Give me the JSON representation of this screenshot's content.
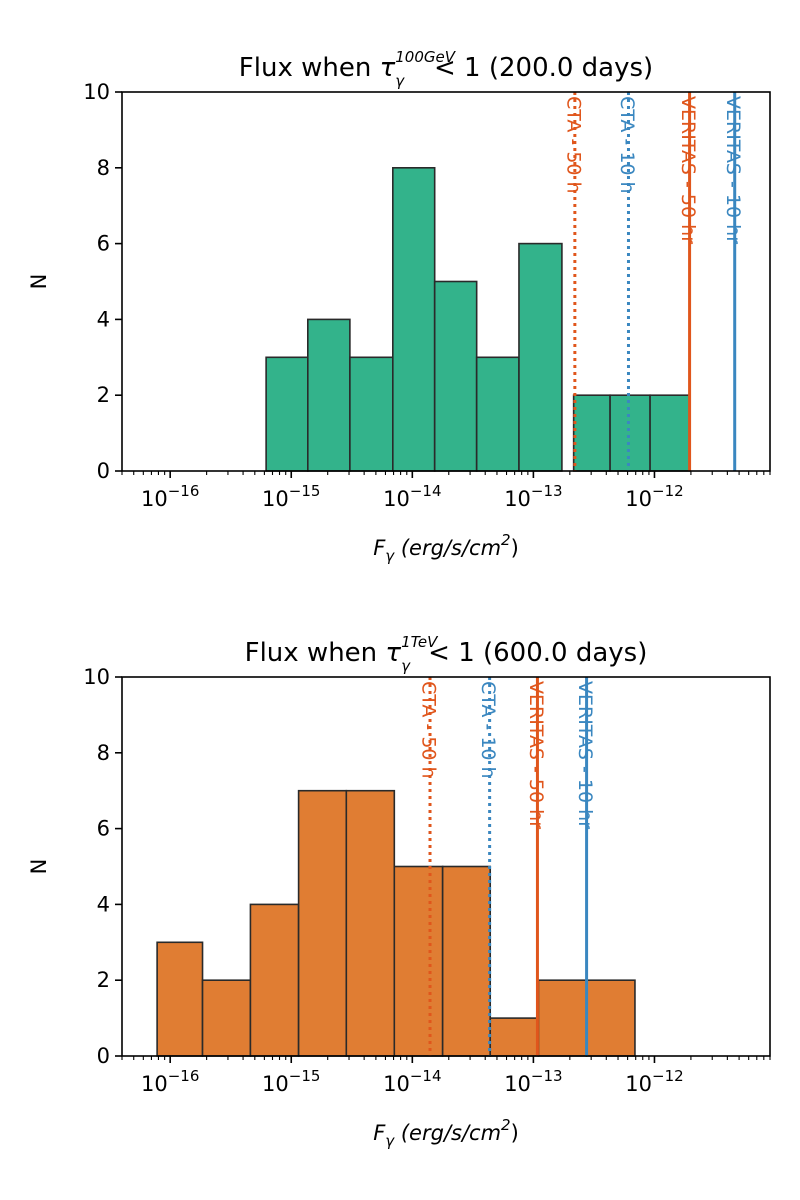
{
  "chart_data": [
    {
      "type": "bar",
      "panel": "top",
      "title": {
        "prefix": "Flux when ",
        "symbol": "τ",
        "sub": "γ",
        "sup": "100GeV",
        "suffix": " < 1 (200.0 days)"
      },
      "xlabel": {
        "symbol": "F",
        "sub": "γ",
        "rest": " (erg/s/cm",
        "sup": "2",
        "close": ")"
      },
      "ylabel": "N",
      "x_scale": "log",
      "xlim": [
        4e-17,
        9e-12
      ],
      "ylim": [
        0,
        10
      ],
      "yticks": [
        0,
        2,
        4,
        6,
        8,
        10
      ],
      "xticks": [
        {
          "value": 1e-16,
          "base": "10",
          "exp": "−16"
        },
        {
          "value": 1e-15,
          "base": "10",
          "exp": "−15"
        },
        {
          "value": 1e-14,
          "base": "10",
          "exp": "−14"
        },
        {
          "value": 1e-13,
          "base": "10",
          "exp": "−13"
        },
        {
          "value": 1e-12,
          "base": "10",
          "exp": "−12"
        }
      ],
      "bar_color": "#33b38b",
      "bins": [
        {
          "lo": 6.2e-16,
          "hi": 1.37e-15,
          "count": 3
        },
        {
          "lo": 1.37e-15,
          "hi": 3.05e-15,
          "count": 4
        },
        {
          "lo": 3.05e-15,
          "hi": 6.9e-15,
          "count": 3
        },
        {
          "lo": 6.9e-15,
          "hi": 1.53e-14,
          "count": 8
        },
        {
          "lo": 1.53e-14,
          "hi": 3.4e-14,
          "count": 5
        },
        {
          "lo": 3.4e-14,
          "hi": 7.6e-14,
          "count": 3
        },
        {
          "lo": 7.6e-14,
          "hi": 1.72e-13,
          "count": 6
        },
        {
          "lo": 2.15e-13,
          "hi": 4.3e-13,
          "count": 2
        },
        {
          "lo": 4.3e-13,
          "hi": 9.2e-13,
          "count": 2
        },
        {
          "lo": 9.2e-13,
          "hi": 1.95e-12,
          "count": 2
        }
      ],
      "thresholds": [
        {
          "label": "CTA - 50 h",
          "value": 2.2e-13,
          "color": "#e0561c",
          "style": "dotted"
        },
        {
          "label": "CTA - 10 h",
          "value": 6.1e-13,
          "color": "#3a87c0",
          "style": "dotted"
        },
        {
          "label": "VERITAS - 50 hr",
          "value": 1.95e-12,
          "color": "#e0561c",
          "style": "solid"
        },
        {
          "label": "VERITAS - 10 hr",
          "value": 4.6e-12,
          "color": "#3a87c0",
          "style": "solid"
        }
      ]
    },
    {
      "type": "bar",
      "panel": "bottom",
      "title": {
        "prefix": "Flux when ",
        "symbol": "τ",
        "sub": "γ",
        "sup": "1TeV",
        "suffix": " < 1 (600.0 days)"
      },
      "xlabel": {
        "symbol": "F",
        "sub": "γ",
        "rest": " (erg/s/cm",
        "sup": "2",
        "close": ")"
      },
      "ylabel": "N",
      "x_scale": "log",
      "xlim": [
        4e-17,
        9e-12
      ],
      "ylim": [
        0,
        10
      ],
      "yticks": [
        0,
        2,
        4,
        6,
        8,
        10
      ],
      "xticks": [
        {
          "value": 1e-16,
          "base": "10",
          "exp": "−16"
        },
        {
          "value": 1e-15,
          "base": "10",
          "exp": "−15"
        },
        {
          "value": 1e-14,
          "base": "10",
          "exp": "−14"
        },
        {
          "value": 1e-13,
          "base": "10",
          "exp": "−13"
        },
        {
          "value": 1e-12,
          "base": "10",
          "exp": "−12"
        }
      ],
      "bar_color": "#e07d33",
      "bins": [
        {
          "lo": 7.8e-17,
          "hi": 1.85e-16,
          "count": 3
        },
        {
          "lo": 1.85e-16,
          "hi": 4.6e-16,
          "count": 2
        },
        {
          "lo": 4.6e-16,
          "hi": 1.15e-15,
          "count": 4
        },
        {
          "lo": 1.15e-15,
          "hi": 2.85e-15,
          "count": 7
        },
        {
          "lo": 2.85e-15,
          "hi": 7.1e-15,
          "count": 7
        },
        {
          "lo": 7.1e-15,
          "hi": 1.78e-14,
          "count": 5
        },
        {
          "lo": 1.78e-14,
          "hi": 4.4e-14,
          "count": 5
        },
        {
          "lo": 4.4e-14,
          "hi": 1.1e-13,
          "count": 1
        },
        {
          "lo": 1.1e-13,
          "hi": 2.75e-13,
          "count": 2
        },
        {
          "lo": 2.75e-13,
          "hi": 6.9e-13,
          "count": 2
        }
      ],
      "thresholds": [
        {
          "label": "CTA - 50 h",
          "value": 1.4e-14,
          "color": "#e0561c",
          "style": "dotted"
        },
        {
          "label": "CTA - 10 h",
          "value": 4.35e-14,
          "color": "#3a87c0",
          "style": "dotted"
        },
        {
          "label": "VERITAS - 50 hr",
          "value": 1.08e-13,
          "color": "#e0561c",
          "style": "solid"
        },
        {
          "label": "VERITAS - 10 hr",
          "value": 2.75e-13,
          "color": "#3a87c0",
          "style": "solid"
        }
      ]
    }
  ]
}
